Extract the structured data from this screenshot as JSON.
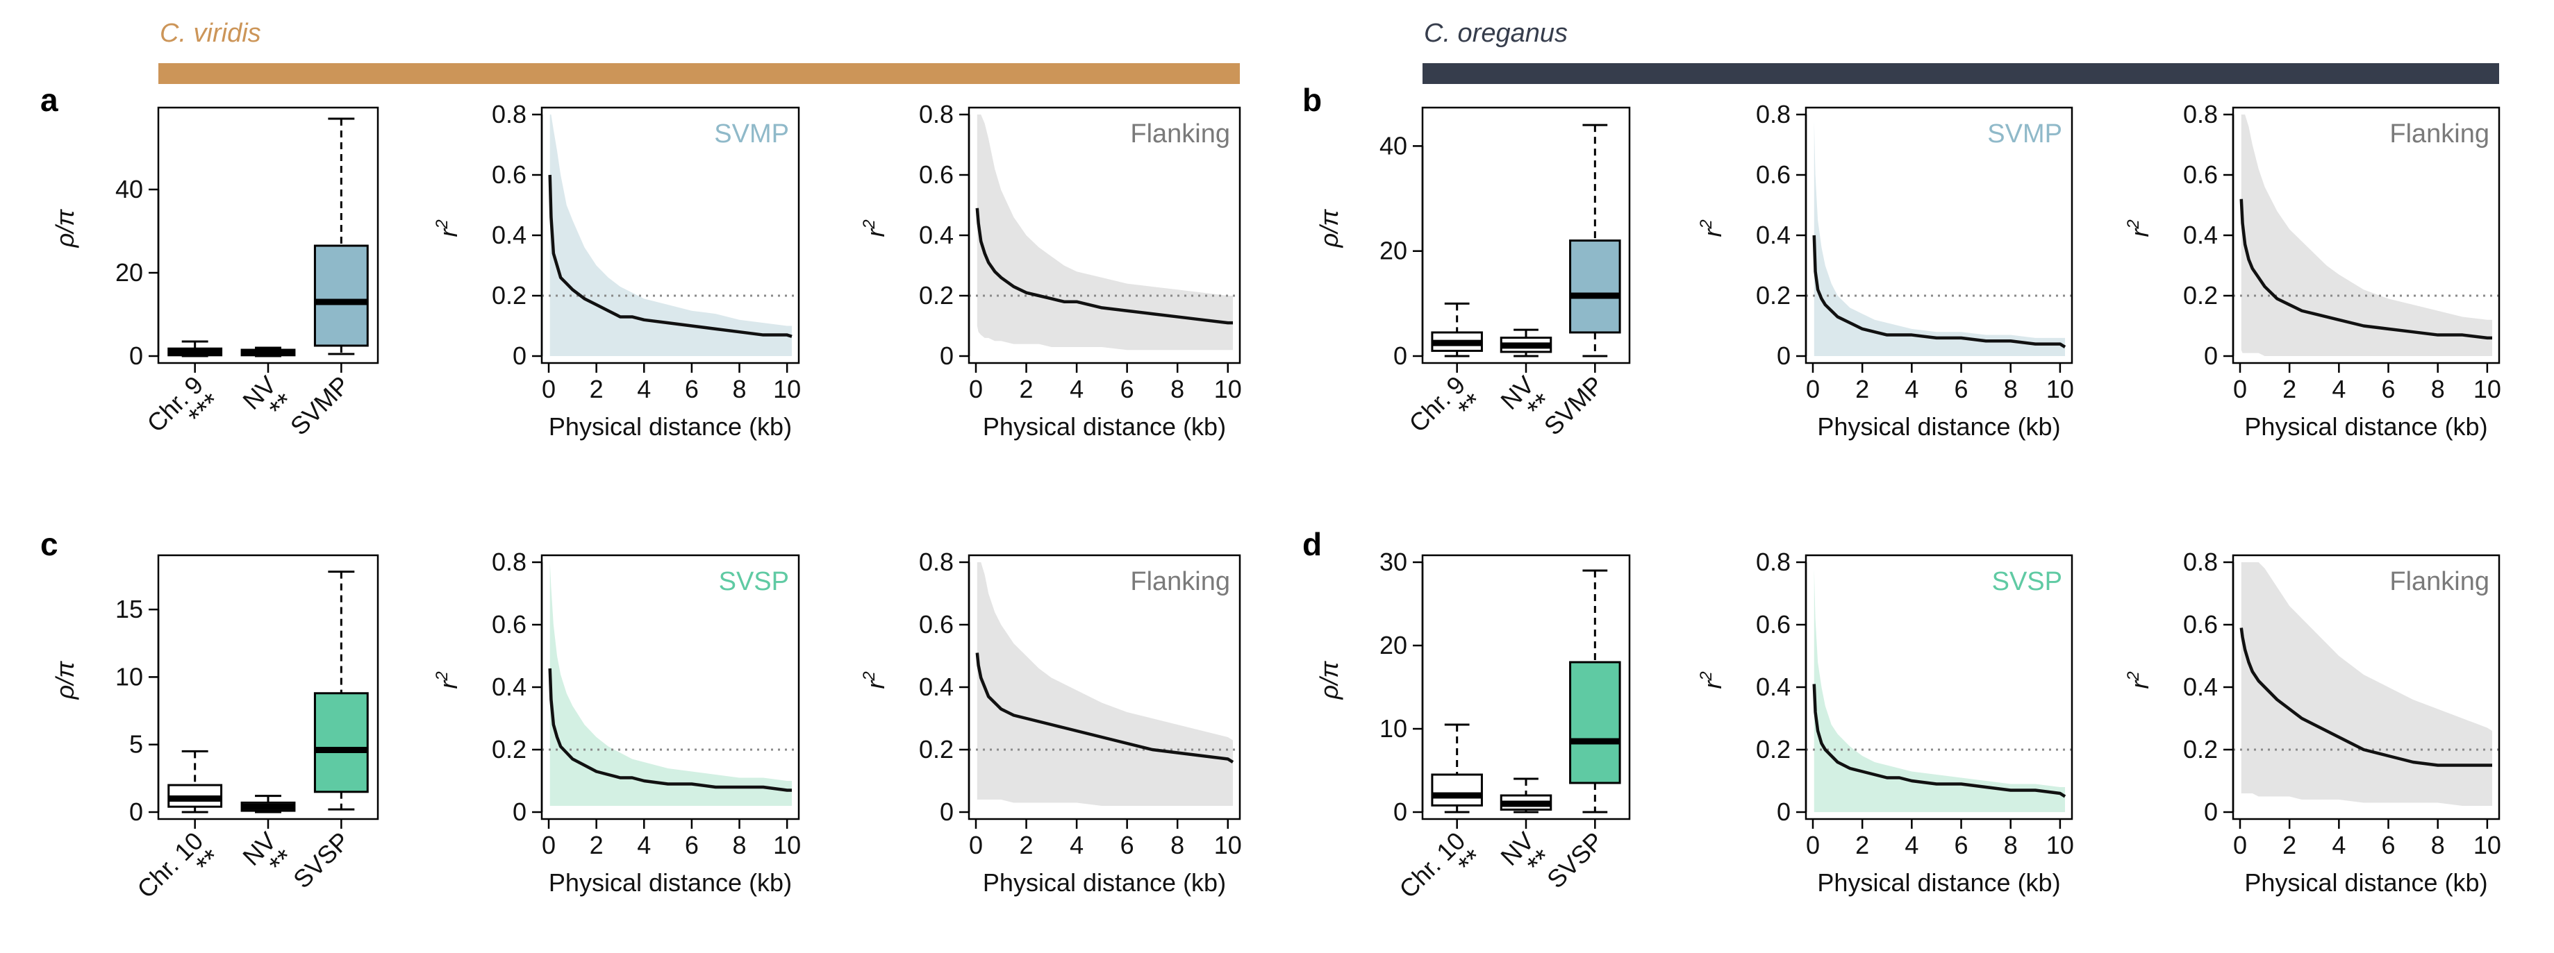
{
  "header": {
    "left_species": "C. viridis",
    "right_species": "C. oreganus",
    "left_bar_color": "#cc9558",
    "right_bar_color": "#363d4c"
  },
  "colors": {
    "SVMP": "#8fb9c9",
    "SVSP": "#5fcaa3",
    "Flanking": "#7a7a7a",
    "band_SVMP": "#dbe8ec",
    "band_SVSP": "#d3f0e3",
    "band_Flanking": "#e4e4e4",
    "line": "#111111",
    "reference_line": "#8a8a8a"
  },
  "panels": [
    {
      "letter": "a"
    },
    {
      "letter": "b"
    },
    {
      "letter": "c"
    },
    {
      "letter": "d"
    }
  ],
  "chart_data": [
    {
      "type": "boxplot",
      "panel": "a",
      "species": "C. viridis",
      "ylabel": "ρ/π",
      "ylim": [
        0,
        58
      ],
      "yticks": [
        0,
        20,
        40
      ],
      "categories": [
        "Chr. 9",
        "NV",
        "SVMP"
      ],
      "significance": [
        "***",
        "**",
        ""
      ],
      "boxes": [
        {
          "whisker_low": 0,
          "q1": 0.2,
          "median": 0.9,
          "q3": 1.8,
          "whisker_high": 3.5,
          "fill": "#ffffff"
        },
        {
          "whisker_low": 0,
          "q1": 0.2,
          "median": 0.8,
          "q3": 1.5,
          "whisker_high": 2.0,
          "fill": "#ffffff"
        },
        {
          "whisker_low": 0.5,
          "q1": 2.5,
          "median": 13,
          "q3": 26.5,
          "whisker_high": 57,
          "fill": "#8fb9c9"
        }
      ]
    },
    {
      "type": "line",
      "panel": "a",
      "label": "SVMP",
      "group": "SVMP",
      "xlabel": "Physical distance (kb)",
      "ylabel": "r²",
      "xlim": [
        0,
        10.2
      ],
      "ylim": [
        0,
        0.8
      ],
      "xticks": [
        0,
        2,
        4,
        6,
        8,
        10
      ],
      "yticks": [
        0,
        0.2,
        0.4,
        0.6,
        0.8
      ],
      "reference_y": 0.2,
      "x": [
        0.05,
        0.1,
        0.2,
        0.35,
        0.5,
        0.75,
        1,
        1.5,
        2,
        2.5,
        3,
        3.5,
        4,
        5,
        6,
        7,
        8,
        9,
        10,
        10.2
      ],
      "y": [
        0.6,
        0.46,
        0.34,
        0.3,
        0.26,
        0.24,
        0.22,
        0.19,
        0.17,
        0.15,
        0.13,
        0.13,
        0.12,
        0.11,
        0.1,
        0.09,
        0.08,
        0.07,
        0.07,
        0.065
      ],
      "band_lower": [
        0,
        0,
        0,
        0,
        0,
        0,
        0,
        0,
        0,
        0,
        0,
        0,
        0,
        0,
        0,
        0,
        0,
        0,
        0,
        0
      ],
      "band_upper": [
        0.8,
        0.8,
        0.75,
        0.68,
        0.6,
        0.5,
        0.45,
        0.36,
        0.3,
        0.26,
        0.23,
        0.21,
        0.19,
        0.17,
        0.15,
        0.14,
        0.12,
        0.11,
        0.1,
        0.1
      ]
    },
    {
      "type": "line",
      "panel": "a",
      "label": "Flanking",
      "group": "Flanking",
      "xlabel": "Physical distance (kb)",
      "ylabel": "r²",
      "xlim": [
        0,
        10.2
      ],
      "ylim": [
        0,
        0.8
      ],
      "xticks": [
        0,
        2,
        4,
        6,
        8,
        10
      ],
      "yticks": [
        0,
        0.2,
        0.4,
        0.6,
        0.8
      ],
      "reference_y": 0.2,
      "x": [
        0.05,
        0.1,
        0.2,
        0.35,
        0.5,
        0.75,
        1,
        1.5,
        2,
        2.5,
        3,
        3.5,
        4,
        5,
        6,
        7,
        8,
        9,
        10,
        10.2
      ],
      "y": [
        0.49,
        0.44,
        0.38,
        0.34,
        0.31,
        0.28,
        0.26,
        0.23,
        0.21,
        0.2,
        0.19,
        0.18,
        0.18,
        0.16,
        0.15,
        0.14,
        0.13,
        0.12,
        0.11,
        0.11
      ],
      "band_lower": [
        0.1,
        0.08,
        0.07,
        0.06,
        0.06,
        0.05,
        0.05,
        0.04,
        0.04,
        0.04,
        0.03,
        0.03,
        0.03,
        0.03,
        0.02,
        0.02,
        0.02,
        0.02,
        0.02,
        0.02
      ],
      "band_upper": [
        0.8,
        0.8,
        0.8,
        0.77,
        0.72,
        0.62,
        0.55,
        0.46,
        0.4,
        0.36,
        0.33,
        0.3,
        0.28,
        0.26,
        0.24,
        0.23,
        0.22,
        0.21,
        0.2,
        0.2
      ]
    },
    {
      "type": "boxplot",
      "panel": "b",
      "species": "C. oreganus",
      "ylabel": "ρ/π",
      "ylim": [
        0,
        46
      ],
      "yticks": [
        0,
        20,
        40
      ],
      "categories": [
        "Chr. 9",
        "NV",
        "SVMP"
      ],
      "significance": [
        "**",
        "**",
        ""
      ],
      "boxes": [
        {
          "whisker_low": 0,
          "q1": 1,
          "median": 2.5,
          "q3": 4.5,
          "whisker_high": 10,
          "fill": "#ffffff"
        },
        {
          "whisker_low": 0,
          "q1": 0.8,
          "median": 2,
          "q3": 3.5,
          "whisker_high": 5,
          "fill": "#ffffff"
        },
        {
          "whisker_low": 0,
          "q1": 4.5,
          "median": 11.5,
          "q3": 22,
          "whisker_high": 44,
          "fill": "#8fb9c9"
        }
      ]
    },
    {
      "type": "line",
      "panel": "b",
      "label": "SVMP",
      "group": "SVMP",
      "xlabel": "Physical distance (kb)",
      "ylabel": "r²",
      "xlim": [
        0,
        10.2
      ],
      "ylim": [
        0,
        0.8
      ],
      "xticks": [
        0,
        2,
        4,
        6,
        8,
        10
      ],
      "yticks": [
        0,
        0.2,
        0.4,
        0.6,
        0.8
      ],
      "reference_y": 0.2,
      "x": [
        0.05,
        0.1,
        0.2,
        0.35,
        0.5,
        0.75,
        1,
        1.5,
        2,
        2.5,
        3,
        3.5,
        4,
        5,
        6,
        7,
        8,
        9,
        10,
        10.2
      ],
      "y": [
        0.4,
        0.28,
        0.22,
        0.19,
        0.17,
        0.15,
        0.13,
        0.11,
        0.09,
        0.08,
        0.07,
        0.07,
        0.07,
        0.06,
        0.06,
        0.05,
        0.05,
        0.04,
        0.04,
        0.03
      ],
      "band_lower": [
        0,
        0,
        0,
        0,
        0,
        0,
        0,
        0,
        0,
        0,
        0,
        0,
        0,
        0,
        0,
        0,
        0,
        0,
        0,
        0
      ],
      "band_upper": [
        0.78,
        0.6,
        0.45,
        0.36,
        0.3,
        0.24,
        0.2,
        0.16,
        0.14,
        0.12,
        0.11,
        0.1,
        0.09,
        0.08,
        0.08,
        0.07,
        0.07,
        0.06,
        0.06,
        0.06
      ]
    },
    {
      "type": "line",
      "panel": "b",
      "label": "Flanking",
      "group": "Flanking",
      "xlabel": "Physical distance (kb)",
      "ylabel": "r²",
      "xlim": [
        0,
        10.2
      ],
      "ylim": [
        0,
        0.8
      ],
      "xticks": [
        0,
        2,
        4,
        6,
        8,
        10
      ],
      "yticks": [
        0,
        0.2,
        0.4,
        0.6,
        0.8
      ],
      "reference_y": 0.2,
      "x": [
        0.05,
        0.1,
        0.2,
        0.35,
        0.5,
        0.75,
        1,
        1.5,
        2,
        2.5,
        3,
        3.5,
        4,
        5,
        6,
        7,
        8,
        9,
        10,
        10.2
      ],
      "y": [
        0.52,
        0.44,
        0.37,
        0.32,
        0.29,
        0.26,
        0.23,
        0.19,
        0.17,
        0.15,
        0.14,
        0.13,
        0.12,
        0.1,
        0.09,
        0.08,
        0.07,
        0.07,
        0.06,
        0.06
      ],
      "band_lower": [
        0.02,
        0.01,
        0.01,
        0.01,
        0.01,
        0.01,
        0,
        0,
        0,
        0,
        0,
        0,
        0,
        0,
        0,
        0,
        0,
        0,
        0,
        0
      ],
      "band_upper": [
        0.8,
        0.8,
        0.8,
        0.76,
        0.7,
        0.62,
        0.56,
        0.48,
        0.42,
        0.38,
        0.34,
        0.3,
        0.27,
        0.22,
        0.19,
        0.17,
        0.15,
        0.13,
        0.12,
        0.12
      ]
    },
    {
      "type": "boxplot",
      "panel": "c",
      "species": "C. viridis",
      "ylabel": "ρ/π",
      "ylim": [
        0,
        18.5
      ],
      "yticks": [
        0,
        5,
        10,
        15
      ],
      "categories": [
        "Chr. 10",
        "NV",
        "SVSP"
      ],
      "significance": [
        "**",
        "**",
        ""
      ],
      "boxes": [
        {
          "whisker_low": 0,
          "q1": 0.4,
          "median": 1,
          "q3": 2,
          "whisker_high": 4.5,
          "fill": "#ffffff"
        },
        {
          "whisker_low": 0,
          "q1": 0.1,
          "median": 0.4,
          "q3": 0.7,
          "whisker_high": 1.2,
          "fill": "#ffffff"
        },
        {
          "whisker_low": 0.2,
          "q1": 1.5,
          "median": 4.6,
          "q3": 8.8,
          "whisker_high": 17.8,
          "fill": "#5fcaa3"
        }
      ]
    },
    {
      "type": "line",
      "panel": "c",
      "label": "SVSP",
      "group": "SVSP",
      "xlabel": "Physical distance (kb)",
      "ylabel": "r²",
      "xlim": [
        0,
        10.2
      ],
      "ylim": [
        0,
        0.8
      ],
      "xticks": [
        0,
        2,
        4,
        6,
        8,
        10
      ],
      "yticks": [
        0,
        0.2,
        0.4,
        0.6,
        0.8
      ],
      "reference_y": 0.2,
      "x": [
        0.05,
        0.1,
        0.2,
        0.35,
        0.5,
        0.75,
        1,
        1.5,
        2,
        2.5,
        3,
        3.5,
        4,
        5,
        6,
        7,
        8,
        9,
        10,
        10.2
      ],
      "y": [
        0.46,
        0.36,
        0.28,
        0.24,
        0.21,
        0.19,
        0.17,
        0.15,
        0.13,
        0.12,
        0.11,
        0.11,
        0.1,
        0.09,
        0.09,
        0.08,
        0.08,
        0.08,
        0.07,
        0.07
      ],
      "band_lower": [
        0.02,
        0.02,
        0.02,
        0.02,
        0.02,
        0.02,
        0.02,
        0.02,
        0.02,
        0.02,
        0.02,
        0.02,
        0.02,
        0.02,
        0.02,
        0.02,
        0.02,
        0.02,
        0.02,
        0.02
      ],
      "band_upper": [
        0.8,
        0.72,
        0.6,
        0.5,
        0.44,
        0.38,
        0.34,
        0.28,
        0.24,
        0.21,
        0.19,
        0.17,
        0.16,
        0.14,
        0.13,
        0.12,
        0.11,
        0.11,
        0.1,
        0.1
      ]
    },
    {
      "type": "line",
      "panel": "c",
      "label": "Flanking",
      "group": "Flanking",
      "xlabel": "Physical distance (kb)",
      "ylabel": "r²",
      "xlim": [
        0,
        10.2
      ],
      "ylim": [
        0,
        0.8
      ],
      "xticks": [
        0,
        2,
        4,
        6,
        8,
        10
      ],
      "yticks": [
        0,
        0.2,
        0.4,
        0.6,
        0.8
      ],
      "reference_y": 0.2,
      "x": [
        0.05,
        0.1,
        0.2,
        0.35,
        0.5,
        0.75,
        1,
        1.5,
        2,
        2.5,
        3,
        3.5,
        4,
        5,
        6,
        7,
        8,
        9,
        10,
        10.2
      ],
      "y": [
        0.51,
        0.47,
        0.43,
        0.4,
        0.37,
        0.35,
        0.33,
        0.31,
        0.3,
        0.29,
        0.28,
        0.27,
        0.26,
        0.24,
        0.22,
        0.2,
        0.19,
        0.18,
        0.17,
        0.16
      ],
      "band_lower": [
        0.04,
        0.04,
        0.04,
        0.04,
        0.04,
        0.04,
        0.04,
        0.03,
        0.03,
        0.03,
        0.03,
        0.03,
        0.03,
        0.02,
        0.02,
        0.02,
        0.02,
        0.02,
        0.02,
        0.02
      ],
      "band_upper": [
        0.8,
        0.8,
        0.8,
        0.76,
        0.7,
        0.64,
        0.6,
        0.54,
        0.5,
        0.46,
        0.43,
        0.41,
        0.39,
        0.35,
        0.32,
        0.3,
        0.28,
        0.26,
        0.24,
        0.23
      ]
    },
    {
      "type": "boxplot",
      "panel": "d",
      "species": "C. oreganus",
      "ylabel": "ρ/π",
      "ylim": [
        0,
        30
      ],
      "yticks": [
        0,
        10,
        20,
        30
      ],
      "categories": [
        "Chr. 10",
        "NV",
        "SVSP"
      ],
      "significance": [
        "**",
        "**",
        ""
      ],
      "boxes": [
        {
          "whisker_low": 0,
          "q1": 0.8,
          "median": 2,
          "q3": 4.5,
          "whisker_high": 10.5,
          "fill": "#ffffff"
        },
        {
          "whisker_low": 0,
          "q1": 0.3,
          "median": 1,
          "q3": 2,
          "whisker_high": 4,
          "fill": "#ffffff"
        },
        {
          "whisker_low": 0,
          "q1": 3.5,
          "median": 8.5,
          "q3": 18,
          "whisker_high": 29,
          "fill": "#5fcaa3"
        }
      ]
    },
    {
      "type": "line",
      "panel": "d",
      "label": "SVSP",
      "group": "SVSP",
      "xlabel": "Physical distance (kb)",
      "ylabel": "r²",
      "xlim": [
        0,
        10.2
      ],
      "ylim": [
        0,
        0.8
      ],
      "xticks": [
        0,
        2,
        4,
        6,
        8,
        10
      ],
      "yticks": [
        0,
        0.2,
        0.4,
        0.6,
        0.8
      ],
      "reference_y": 0.2,
      "x": [
        0.05,
        0.1,
        0.2,
        0.35,
        0.5,
        0.75,
        1,
        1.5,
        2,
        2.5,
        3,
        3.5,
        4,
        5,
        6,
        7,
        8,
        9,
        10,
        10.2
      ],
      "y": [
        0.41,
        0.32,
        0.26,
        0.22,
        0.2,
        0.18,
        0.16,
        0.14,
        0.13,
        0.12,
        0.11,
        0.11,
        0.1,
        0.09,
        0.09,
        0.08,
        0.07,
        0.07,
        0.06,
        0.05
      ],
      "band_lower": [
        0,
        0,
        0,
        0,
        0,
        0,
        0,
        0,
        0,
        0,
        0,
        0,
        0,
        0,
        0,
        0,
        0,
        0,
        0,
        0
      ],
      "band_upper": [
        0.78,
        0.62,
        0.48,
        0.4,
        0.34,
        0.28,
        0.25,
        0.21,
        0.18,
        0.16,
        0.15,
        0.14,
        0.13,
        0.12,
        0.11,
        0.1,
        0.09,
        0.09,
        0.08,
        0.08
      ]
    },
    {
      "type": "line",
      "panel": "d",
      "label": "Flanking",
      "group": "Flanking",
      "xlabel": "Physical distance (kb)",
      "ylabel": "r²",
      "xlim": [
        0,
        10.2
      ],
      "ylim": [
        0,
        0.8
      ],
      "xticks": [
        0,
        2,
        4,
        6,
        8,
        10
      ],
      "yticks": [
        0,
        0.2,
        0.4,
        0.6,
        0.8
      ],
      "reference_y": 0.2,
      "x": [
        0.05,
        0.1,
        0.2,
        0.35,
        0.5,
        0.75,
        1,
        1.5,
        2,
        2.5,
        3,
        3.5,
        4,
        5,
        6,
        7,
        8,
        9,
        10,
        10.2
      ],
      "y": [
        0.59,
        0.56,
        0.52,
        0.48,
        0.45,
        0.42,
        0.4,
        0.36,
        0.33,
        0.3,
        0.28,
        0.26,
        0.24,
        0.2,
        0.18,
        0.16,
        0.15,
        0.15,
        0.15,
        0.15
      ],
      "band_lower": [
        0.06,
        0.06,
        0.06,
        0.06,
        0.06,
        0.05,
        0.05,
        0.05,
        0.05,
        0.04,
        0.04,
        0.04,
        0.04,
        0.03,
        0.03,
        0.03,
        0.03,
        0.02,
        0.02,
        0.02
      ],
      "band_upper": [
        0.8,
        0.8,
        0.8,
        0.8,
        0.8,
        0.8,
        0.78,
        0.72,
        0.66,
        0.62,
        0.58,
        0.54,
        0.5,
        0.44,
        0.4,
        0.36,
        0.33,
        0.3,
        0.27,
        0.26
      ]
    }
  ]
}
